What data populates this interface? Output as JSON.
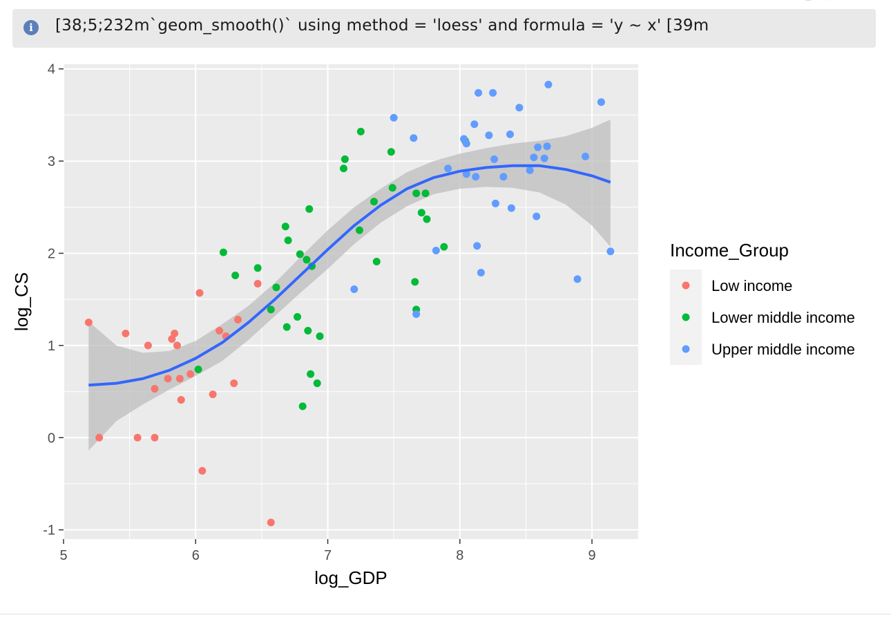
{
  "message": {
    "icon": "info-icon",
    "text": "[38;5;232m`geom_smooth()` using method = 'loess' and formula = 'y ~ x' [39m"
  },
  "chart_data": {
    "type": "scatter",
    "xlabel": "log_GDP",
    "ylabel": "log_CS",
    "xlim": [
      5,
      9.35
    ],
    "ylim": [
      -1.1,
      4.05
    ],
    "xticks": [
      5,
      6,
      7,
      8,
      9
    ],
    "yticks": [
      -1,
      0,
      1,
      2,
      3,
      4
    ],
    "grid": true,
    "legend": {
      "title": "Income_Group",
      "placement": "right"
    },
    "colors": {
      "panel": "#ebebeb",
      "grid": "#ffffff",
      "smooth_line": "#3366ff",
      "ribbon": "#bdbdbd"
    },
    "series": [
      {
        "name": "Low income",
        "color": "#f8766d",
        "points": [
          [
            5.19,
            1.25
          ],
          [
            5.27,
            0.0
          ],
          [
            5.47,
            1.13
          ],
          [
            5.56,
            0.0
          ],
          [
            5.64,
            1.0
          ],
          [
            5.69,
            0.53
          ],
          [
            5.69,
            0.0
          ],
          [
            5.79,
            0.64
          ],
          [
            5.82,
            1.07
          ],
          [
            5.84,
            1.13
          ],
          [
            5.86,
            1.0
          ],
          [
            5.88,
            0.64
          ],
          [
            5.89,
            0.41
          ],
          [
            5.96,
            0.69
          ],
          [
            6.03,
            1.57
          ],
          [
            6.05,
            -0.36
          ],
          [
            6.13,
            0.47
          ],
          [
            6.18,
            1.16
          ],
          [
            6.23,
            1.1
          ],
          [
            6.29,
            0.59
          ],
          [
            6.32,
            1.28
          ],
          [
            6.47,
            1.67
          ],
          [
            6.57,
            -0.92
          ]
        ]
      },
      {
        "name": "Lower middle income",
        "color": "#00ba38",
        "points": [
          [
            6.02,
            0.74
          ],
          [
            6.21,
            2.01
          ],
          [
            6.3,
            1.76
          ],
          [
            6.47,
            1.84
          ],
          [
            6.57,
            1.39
          ],
          [
            6.61,
            1.63
          ],
          [
            6.68,
            2.29
          ],
          [
            6.69,
            1.2
          ],
          [
            6.7,
            2.14
          ],
          [
            6.77,
            1.31
          ],
          [
            6.79,
            1.99
          ],
          [
            6.81,
            0.34
          ],
          [
            6.84,
            1.93
          ],
          [
            6.85,
            1.16
          ],
          [
            6.86,
            2.48
          ],
          [
            6.87,
            0.69
          ],
          [
            6.88,
            1.86
          ],
          [
            6.92,
            0.59
          ],
          [
            6.94,
            1.1
          ],
          [
            7.12,
            2.92
          ],
          [
            7.13,
            3.02
          ],
          [
            7.24,
            2.25
          ],
          [
            7.25,
            3.32
          ],
          [
            7.35,
            2.56
          ],
          [
            7.37,
            1.91
          ],
          [
            7.48,
            3.1
          ],
          [
            7.49,
            2.71
          ],
          [
            7.66,
            1.69
          ],
          [
            7.67,
            2.65
          ],
          [
            7.67,
            1.39
          ],
          [
            7.71,
            2.44
          ],
          [
            7.74,
            2.65
          ],
          [
            7.75,
            2.37
          ],
          [
            7.88,
            2.07
          ],
          [
            8.04,
            3.22
          ]
        ]
      },
      {
        "name": "Upper middle income",
        "color": "#619cff",
        "points": [
          [
            7.2,
            1.61
          ],
          [
            7.5,
            3.47
          ],
          [
            7.65,
            3.25
          ],
          [
            7.67,
            1.34
          ],
          [
            7.82,
            2.03
          ],
          [
            7.91,
            2.92
          ],
          [
            8.03,
            3.24
          ],
          [
            8.05,
            2.86
          ],
          [
            8.05,
            3.19
          ],
          [
            8.11,
            3.4
          ],
          [
            8.12,
            2.83
          ],
          [
            8.13,
            2.08
          ],
          [
            8.14,
            3.74
          ],
          [
            8.16,
            1.79
          ],
          [
            8.22,
            3.28
          ],
          [
            8.25,
            3.74
          ],
          [
            8.26,
            3.02
          ],
          [
            8.27,
            2.54
          ],
          [
            8.33,
            2.83
          ],
          [
            8.38,
            3.29
          ],
          [
            8.39,
            2.49
          ],
          [
            8.45,
            3.58
          ],
          [
            8.53,
            2.9
          ],
          [
            8.56,
            3.04
          ],
          [
            8.58,
            2.4
          ],
          [
            8.59,
            3.15
          ],
          [
            8.64,
            3.03
          ],
          [
            8.66,
            3.16
          ],
          [
            8.67,
            3.83
          ],
          [
            8.89,
            1.72
          ],
          [
            8.95,
            3.05
          ],
          [
            9.07,
            3.64
          ],
          [
            9.14,
            2.02
          ]
        ]
      }
    ],
    "smooth": {
      "method": "loess",
      "fit": [
        [
          5.19,
          0.57
        ],
        [
          5.4,
          0.59
        ],
        [
          5.6,
          0.64
        ],
        [
          5.8,
          0.73
        ],
        [
          6.0,
          0.86
        ],
        [
          6.2,
          1.03
        ],
        [
          6.4,
          1.25
        ],
        [
          6.6,
          1.5
        ],
        [
          6.8,
          1.77
        ],
        [
          7.0,
          2.04
        ],
        [
          7.2,
          2.3
        ],
        [
          7.4,
          2.52
        ],
        [
          7.6,
          2.7
        ],
        [
          7.8,
          2.82
        ],
        [
          8.0,
          2.89
        ],
        [
          8.2,
          2.93
        ],
        [
          8.4,
          2.95
        ],
        [
          8.6,
          2.95
        ],
        [
          8.8,
          2.91
        ],
        [
          9.0,
          2.84
        ],
        [
          9.14,
          2.77
        ]
      ],
      "upper": [
        [
          5.19,
          1.26
        ],
        [
          5.4,
          1.0
        ],
        [
          5.6,
          0.92
        ],
        [
          5.8,
          0.94
        ],
        [
          6.0,
          1.05
        ],
        [
          6.2,
          1.23
        ],
        [
          6.4,
          1.43
        ],
        [
          6.6,
          1.68
        ],
        [
          6.8,
          1.97
        ],
        [
          7.0,
          2.25
        ],
        [
          7.2,
          2.5
        ],
        [
          7.4,
          2.7
        ],
        [
          7.6,
          2.88
        ],
        [
          7.8,
          3.0
        ],
        [
          8.0,
          3.08
        ],
        [
          8.2,
          3.14
        ],
        [
          8.4,
          3.19
        ],
        [
          8.6,
          3.22
        ],
        [
          8.8,
          3.27
        ],
        [
          9.0,
          3.36
        ],
        [
          9.14,
          3.45
        ]
      ],
      "lower": [
        [
          5.19,
          -0.14
        ],
        [
          5.4,
          0.18
        ],
        [
          5.6,
          0.36
        ],
        [
          5.8,
          0.52
        ],
        [
          6.0,
          0.67
        ],
        [
          6.2,
          0.83
        ],
        [
          6.4,
          1.06
        ],
        [
          6.6,
          1.32
        ],
        [
          6.8,
          1.58
        ],
        [
          7.0,
          1.83
        ],
        [
          7.2,
          2.1
        ],
        [
          7.4,
          2.33
        ],
        [
          7.6,
          2.51
        ],
        [
          7.8,
          2.64
        ],
        [
          8.0,
          2.7
        ],
        [
          8.2,
          2.72
        ],
        [
          8.4,
          2.71
        ],
        [
          8.6,
          2.66
        ],
        [
          8.8,
          2.53
        ],
        [
          9.0,
          2.3
        ],
        [
          9.14,
          2.07
        ]
      ]
    }
  }
}
